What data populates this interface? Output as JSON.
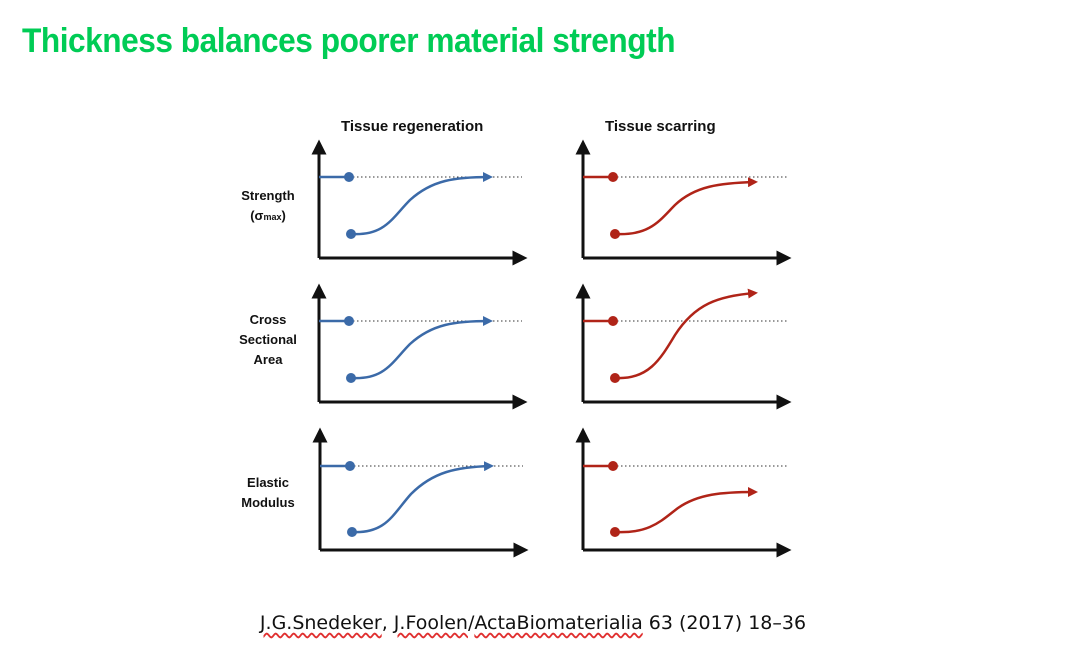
{
  "slide": {
    "title": "Thickness balances poorer material strength"
  },
  "figure": {
    "columns": [
      {
        "header": "Tissue regeneration",
        "color": "#3b6aa8"
      },
      {
        "header": "Tissue scarring",
        "color": "#b02418"
      }
    ],
    "rows": [
      {
        "label_lines": [
          "Strength"
        ],
        "symbol": "(σ",
        "symbol_sub": "max",
        "symbol_end": ")"
      },
      {
        "label_lines": [
          "Cross",
          "Sectional",
          "Area"
        ]
      },
      {
        "label_lines": [
          "Elastic",
          "Modulus"
        ]
      }
    ],
    "panels": [
      {
        "row": 0,
        "col": 0,
        "outcome": "recovers to baseline"
      },
      {
        "row": 0,
        "col": 1,
        "outcome": "recovers to baseline"
      },
      {
        "row": 1,
        "col": 0,
        "outcome": "recovers to baseline"
      },
      {
        "row": 1,
        "col": 1,
        "outcome": "exceeds baseline"
      },
      {
        "row": 2,
        "col": 0,
        "outcome": "recovers to baseline"
      },
      {
        "row": 2,
        "col": 1,
        "outcome": "below baseline"
      }
    ]
  },
  "citation": {
    "part1": "J.G.Snedeker",
    "sep1": ", ",
    "part2": "J.Foolen",
    "sep2": "/",
    "part3": "ActaBiomaterialia",
    "part4": " 63 (2017) 18–36"
  }
}
